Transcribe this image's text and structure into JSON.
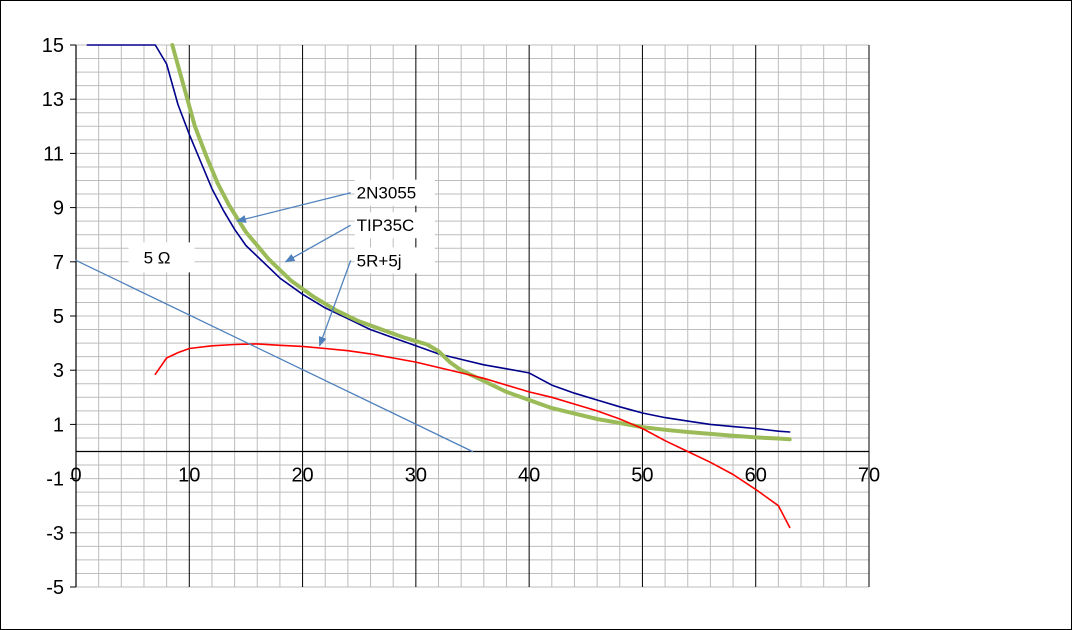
{
  "chart_data": {
    "type": "line",
    "title": "",
    "xlabel": "",
    "ylabel": "",
    "xlim": [
      0,
      70
    ],
    "ylim": [
      -5,
      15
    ],
    "x_ticks": [
      0,
      10,
      20,
      30,
      40,
      50,
      60,
      70
    ],
    "x_tick_labels": [
      "0",
      "10",
      "20",
      "30",
      "40",
      "50",
      "60",
      "70"
    ],
    "y_ticks": [
      15,
      13,
      11,
      9,
      7,
      5,
      3,
      1,
      -1,
      -3,
      -5
    ],
    "y_tick_labels": [
      "15",
      "13",
      "11",
      "9",
      "7",
      "5",
      "3",
      "1",
      "-1",
      "-3",
      "-5"
    ],
    "grid": true,
    "minor_grid": true,
    "legend": "none",
    "series": [
      {
        "color": "#00008b",
        "points": [
          [
            1,
            15
          ],
          [
            7,
            15
          ],
          [
            8,
            14.3
          ],
          [
            9,
            12.8
          ],
          [
            10,
            11.7
          ],
          [
            11,
            10.7
          ],
          [
            12,
            9.7
          ],
          [
            13,
            8.9
          ],
          [
            14,
            8.2
          ],
          [
            15,
            7.6
          ],
          [
            17,
            6.8
          ],
          [
            18,
            6.4
          ],
          [
            20,
            5.8
          ],
          [
            22,
            5.3
          ],
          [
            24,
            4.9
          ],
          [
            26,
            4.5
          ],
          [
            28,
            4.2
          ],
          [
            30,
            3.9
          ],
          [
            32,
            3.6
          ],
          [
            34,
            3.4
          ],
          [
            36,
            3.2
          ],
          [
            38,
            3.05
          ],
          [
            40,
            2.9
          ],
          [
            42,
            2.45
          ],
          [
            44,
            2.15
          ],
          [
            46,
            1.9
          ],
          [
            48,
            1.65
          ],
          [
            50,
            1.42
          ],
          [
            52,
            1.25
          ],
          [
            54,
            1.12
          ],
          [
            56,
            1.0
          ],
          [
            58,
            0.92
          ],
          [
            60,
            0.85
          ],
          [
            62,
            0.75
          ],
          [
            63,
            0.72
          ]
        ]
      },
      {
        "color": "#9bbb59",
        "points": [
          [
            8.5,
            15
          ],
          [
            9.5,
            13.5
          ],
          [
            10.5,
            12
          ],
          [
            11.5,
            10.9
          ],
          [
            12.5,
            9.9
          ],
          [
            13.5,
            9.1
          ],
          [
            15,
            8.1
          ],
          [
            17,
            7.1
          ],
          [
            19,
            6.3
          ],
          [
            21,
            5.7
          ],
          [
            23,
            5.2
          ],
          [
            25,
            4.8
          ],
          [
            27,
            4.5
          ],
          [
            29,
            4.2
          ],
          [
            31,
            3.95
          ],
          [
            32,
            3.7
          ],
          [
            33,
            3.3
          ],
          [
            34,
            3.0
          ],
          [
            36,
            2.6
          ],
          [
            38,
            2.2
          ],
          [
            40,
            1.9
          ],
          [
            42,
            1.6
          ],
          [
            44,
            1.4
          ],
          [
            46,
            1.2
          ],
          [
            48,
            1.05
          ],
          [
            50,
            0.9
          ],
          [
            52,
            0.8
          ],
          [
            54,
            0.72
          ],
          [
            56,
            0.65
          ],
          [
            58,
            0.58
          ],
          [
            60,
            0.52
          ],
          [
            62,
            0.48
          ],
          [
            63,
            0.45
          ]
        ]
      },
      {
        "color": "#ff0000",
        "points": [
          [
            7,
            2.85
          ],
          [
            8,
            3.45
          ],
          [
            9,
            3.65
          ],
          [
            10,
            3.8
          ],
          [
            12,
            3.9
          ],
          [
            14,
            3.95
          ],
          [
            16,
            3.97
          ],
          [
            18,
            3.92
          ],
          [
            20,
            3.88
          ],
          [
            22,
            3.8
          ],
          [
            24,
            3.72
          ],
          [
            26,
            3.6
          ],
          [
            28,
            3.45
          ],
          [
            30,
            3.3
          ],
          [
            32,
            3.1
          ],
          [
            34,
            2.9
          ],
          [
            36,
            2.7
          ],
          [
            38,
            2.45
          ],
          [
            40,
            2.2
          ],
          [
            42,
            2.0
          ],
          [
            44,
            1.75
          ],
          [
            46,
            1.5
          ],
          [
            48,
            1.2
          ],
          [
            50,
            0.85
          ],
          [
            52,
            0.4
          ],
          [
            54,
            0.0
          ],
          [
            56,
            -0.4
          ],
          [
            58,
            -0.85
          ],
          [
            60,
            -1.4
          ],
          [
            62,
            -2.0
          ],
          [
            63,
            -2.8
          ]
        ]
      },
      {
        "color": "#4f81bd",
        "points": [
          [
            0,
            7.05
          ],
          [
            35,
            0
          ]
        ]
      }
    ],
    "annotations": [
      {
        "text": "2N3055",
        "anchor": [
          14.2,
          8.5
        ],
        "label_at": [
          24.6,
          9.55
        ]
      },
      {
        "text": "TIP35C",
        "anchor": [
          18.5,
          7.0
        ],
        "label_at": [
          24.6,
          8.35
        ]
      },
      {
        "text": "5R+5j",
        "anchor": [
          21.5,
          3.9
        ],
        "label_at": [
          24.6,
          7.05
        ]
      },
      {
        "text": "5 Ω",
        "anchor": null,
        "label_at": [
          5.7,
          7.2
        ]
      }
    ]
  }
}
